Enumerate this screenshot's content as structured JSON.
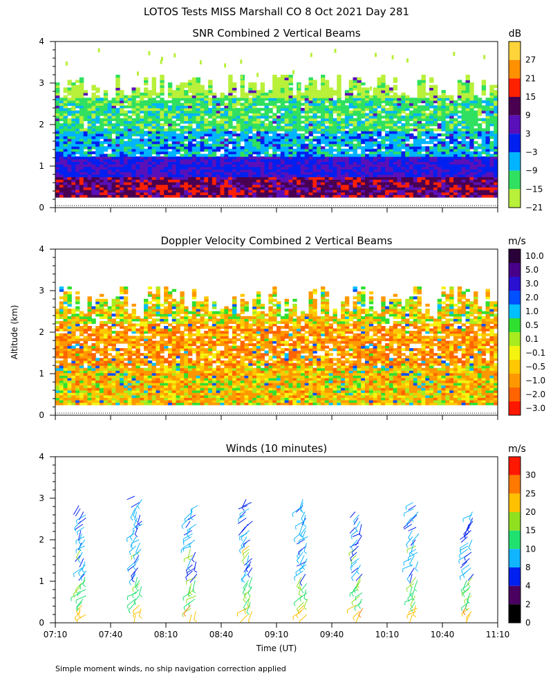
{
  "figure": {
    "title": "LOTOS Tests MISS Marshall CO   8 Oct 2021 Day 281",
    "ylabel": "Altitude (km)",
    "xlabel": "Time (UT)",
    "footnote": "Simple moment winds, no ship navigation correction applied",
    "x_ticks": [
      "07:10",
      "07:40",
      "08:10",
      "08:40",
      "09:10",
      "09:40",
      "10:10",
      "10:40",
      "11:10"
    ],
    "y_ticks": [
      "0",
      "1",
      "2",
      "3",
      "4"
    ]
  },
  "chart_data": [
    {
      "type": "heatmap",
      "title": "SNR Combined 2 Vertical Beams",
      "units": "dB",
      "xlim": [
        430,
        670
      ],
      "ylim": [
        0,
        4
      ],
      "data_altitude_range_km": [
        0.25,
        3.2
      ],
      "colorbar": {
        "labels": [
          "27",
          "21",
          "15",
          "9",
          "3",
          "−3",
          "−9",
          "−15",
          "−21"
        ],
        "colors": [
          "#ffd43a",
          "#ff9000",
          "#ff2000",
          "#4a0050",
          "#5a10b8",
          "#0020f0",
          "#00b4ff",
          "#30e060",
          "#b8f03a"
        ]
      },
      "layers": [
        {
          "from_km": 0.25,
          "to_km": 0.7,
          "typical_db": 9
        },
        {
          "from_km": 0.7,
          "to_km": 1.2,
          "typical_db": 0
        },
        {
          "from_km": 1.2,
          "to_km": 1.8,
          "typical_db": -9
        },
        {
          "from_km": 1.8,
          "to_km": 2.6,
          "typical_db": -15
        },
        {
          "from_km": 2.6,
          "to_km": 3.1,
          "typical_db": -21
        }
      ]
    },
    {
      "type": "heatmap",
      "title": "Doppler Velocity Combined 2 Vertical Beams",
      "units": "m/s",
      "xlim": [
        430,
        670
      ],
      "ylim": [
        0,
        4
      ],
      "data_altitude_range_km": [
        0.25,
        3.1
      ],
      "colorbar": {
        "labels": [
          "10.0",
          "5.0",
          "3.0",
          "2.0",
          "1.0",
          "0.5",
          "0.1",
          "−0.1",
          "−0.5",
          "−1.0",
          "−2.0",
          "−3.0"
        ],
        "colors": [
          "#2a0038",
          "#48008a",
          "#2a10d0",
          "#0050ff",
          "#00c0ff",
          "#30e030",
          "#a8ec20",
          "#f4f410",
          "#ffc800",
          "#ff9800",
          "#ff6400",
          "#ff1800"
        ]
      },
      "layers": [
        {
          "from_km": 0.25,
          "to_km": 1.2,
          "typical_ms": -0.5
        },
        {
          "from_km": 1.2,
          "to_km": 2.2,
          "typical_ms": -1.0
        },
        {
          "from_km": 2.2,
          "to_km": 3.1,
          "typical_ms": -0.3
        }
      ]
    },
    {
      "type": "wind_barbs",
      "title": "Winds (10 minutes)",
      "units": "m/s",
      "xlim": [
        430,
        670
      ],
      "ylim": [
        0,
        4
      ],
      "profile_times_min": [
        445,
        475,
        505,
        535,
        565,
        595,
        625,
        655
      ],
      "profile_top_km": [
        2.85,
        3.1,
        2.85,
        3.05,
        3.05,
        2.75,
        2.95,
        2.7
      ],
      "colorbar": {
        "labels": [
          "30",
          "25",
          "20",
          "15",
          "10",
          "8",
          "4",
          "2",
          "0"
        ],
        "colors": [
          "#ff1800",
          "#ff7800",
          "#ffc000",
          "#90e020",
          "#20e070",
          "#10b4ff",
          "#0020f0",
          "#4a0060",
          "#000000"
        ]
      }
    }
  ]
}
